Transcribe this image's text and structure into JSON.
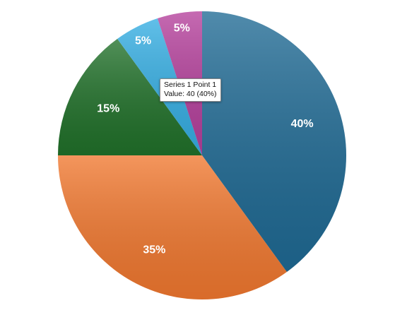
{
  "chart_data": {
    "type": "pie",
    "series": [
      {
        "values": [
          40,
          35,
          15,
          5,
          5
        ]
      }
    ],
    "labels": [
      "40%",
      "35%",
      "15%",
      "5%",
      "5%"
    ],
    "colors": [
      "#1f6a94",
      "#f1782f",
      "#21712a",
      "#35aee3",
      "#b5409c"
    ],
    "start_angle_deg": 0,
    "direction": "clockwise",
    "legend": "none",
    "tooltip": {
      "line1": "Series 1 Point 1",
      "line2": "Value: 40 (40%)"
    }
  }
}
